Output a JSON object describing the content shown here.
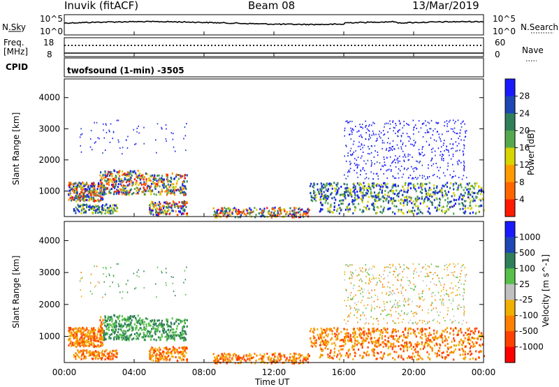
{
  "header": {
    "station": "Inuvik (fitACF)",
    "beam": "Beam 08",
    "date": "13/Mar/2019"
  },
  "nsky_panel": {
    "left_label": "N.Sky",
    "right_label": "N.Search",
    "left_ticks": [
      "10^5",
      "10^0"
    ],
    "right_ticks": [
      "10^5",
      "10^0"
    ]
  },
  "freq_panel": {
    "left_label_1": "Freq.",
    "left_label_2": "[MHz]",
    "right_label": "Nave",
    "left_ticks": [
      "18",
      "8"
    ],
    "right_ticks": [
      "60",
      "0"
    ],
    "cpid_label": "CPID",
    "program": "twofsound (1-min) -3505"
  },
  "time_axis": {
    "label": "Time UT",
    "ticks": [
      "00:00",
      "04:00",
      "08:00",
      "12:00",
      "16:00",
      "20:00",
      "00:00"
    ]
  },
  "chart_data": [
    {
      "type": "heatmap",
      "title": "",
      "ylabel": "Slant Range [km]",
      "ylim": [
        180,
        4600
      ],
      "y_ticks": [
        "1000",
        "2000",
        "3000",
        "4000"
      ],
      "x_range_hours": [
        0,
        24
      ],
      "colorbar": {
        "label": "Power [dB]",
        "ticks": [
          "4",
          "8",
          "12",
          "16",
          "20",
          "24",
          "28"
        ],
        "colors": [
          "#1a1aff",
          "#1e46b4",
          "#2f7f5a",
          "#56a84f",
          "#d8d400",
          "#ff9a00",
          "#ff6600",
          "#ff1a00"
        ]
      }
    },
    {
      "type": "heatmap",
      "title": "",
      "ylabel": "Slant Range [km]",
      "ylim": [
        180,
        4600
      ],
      "y_ticks": [
        "1000",
        "2000",
        "3000",
        "4000"
      ],
      "x_range_hours": [
        0,
        24
      ],
      "colorbar": {
        "label": "Velocity [m s^-1]",
        "ticks": [
          "1000",
          "500",
          "100",
          "25",
          "-25",
          "-100",
          "-500",
          "-1000"
        ],
        "colors": [
          "#1a1aff",
          "#1e46b4",
          "#2f7f5a",
          "#56c04a",
          "#c0c0c0",
          "#f0b000",
          "#ff8000",
          "#ff4000",
          "#ff0000"
        ]
      }
    }
  ]
}
